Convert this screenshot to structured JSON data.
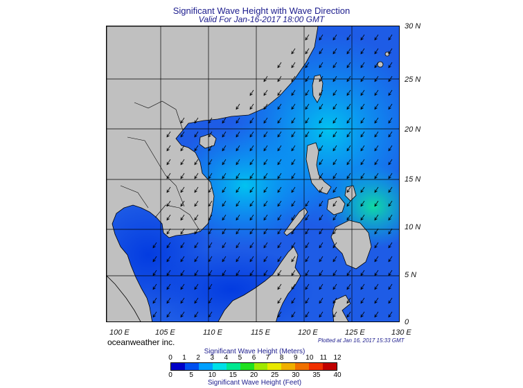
{
  "header": {
    "title": "Significant Wave Height with Wave Direction",
    "subtitle": "Valid For Jan-16-2017 18:00 GMT"
  },
  "map": {
    "lat_labels": [
      "30 N",
      "25 N",
      "20 N",
      "15 N",
      "10 N",
      "5 N",
      "0"
    ],
    "lon_labels": [
      "100 E",
      "105 E",
      "110 E",
      "115 E",
      "120 E",
      "125 E",
      "130 E"
    ],
    "ocean_color": "#1a4dd8",
    "land_color": "#c0c0c0",
    "wave_direction": "south-west"
  },
  "footer": {
    "credit": "oceanweather inc.",
    "plotted": "Plotted at Jan 16, 2017 15:33 GMT"
  },
  "colorbar": {
    "title_meters": "Significant Wave Height (Meters)",
    "title_feet": "Significant Wave Height (Feet)",
    "meters_ticks": [
      "0",
      "1",
      "2",
      "3",
      "4",
      "5",
      "6",
      "7",
      "8",
      "9",
      "10",
      "11",
      "12"
    ],
    "feet_ticks": [
      "0",
      "5",
      "10",
      "15",
      "20",
      "25",
      "30",
      "35",
      "40"
    ],
    "colors": [
      "#0000c8",
      "#0050f0",
      "#00a0ff",
      "#00e0e8",
      "#00e890",
      "#20e020",
      "#a0e800",
      "#e8e800",
      "#f0b000",
      "#f07000",
      "#f03000",
      "#c00000"
    ]
  }
}
